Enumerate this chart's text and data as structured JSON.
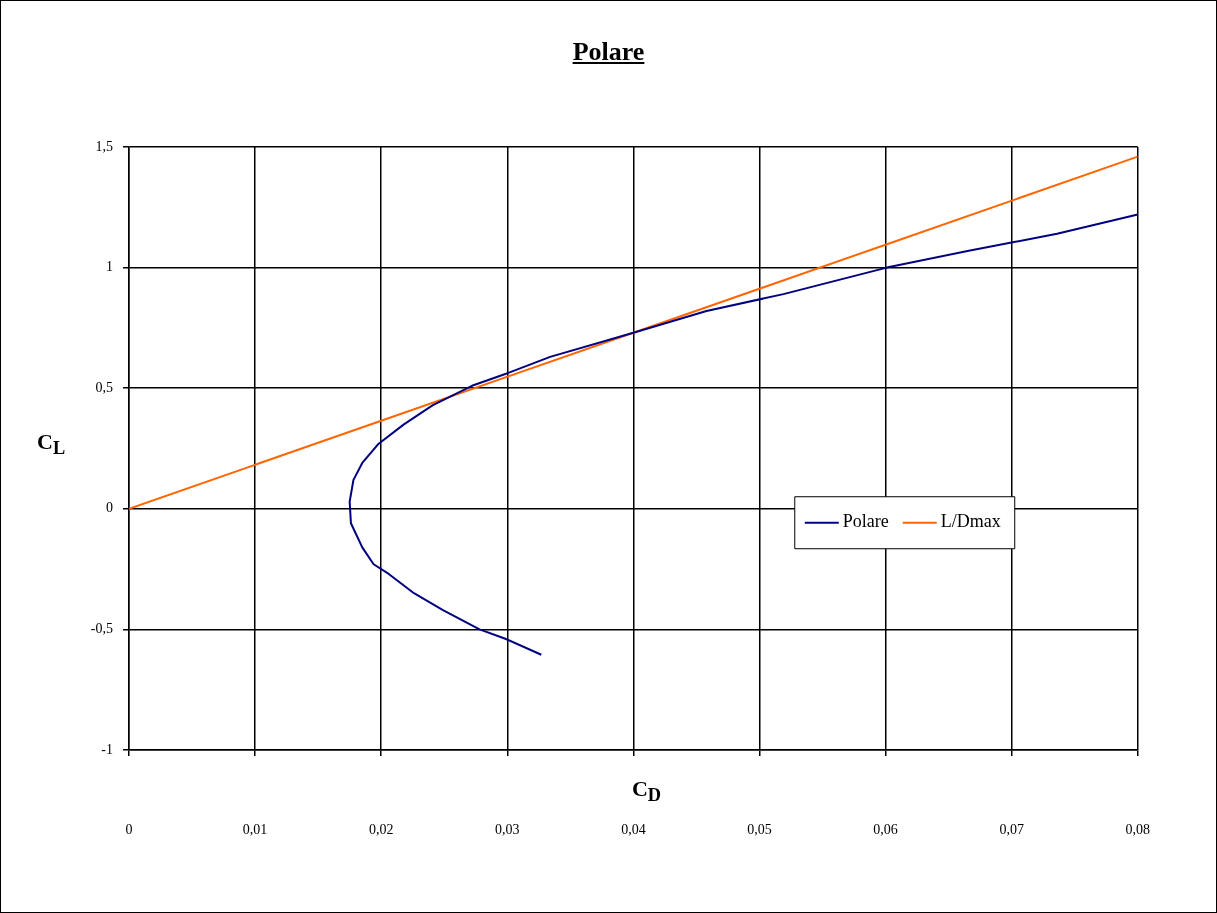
{
  "chart_data": {
    "type": "line",
    "title": "Polare",
    "xlabel": "C$_{D}$",
    "ylabel": "C$_{L}$",
    "xlim": [
      0,
      0.08
    ],
    "ylim": [
      -1,
      1.5
    ],
    "xticks": [
      0,
      {
        "value": 0.01,
        "label": "0,01"
      },
      {
        "value": 0.02,
        "label": "0,02"
      },
      {
        "value": 0.03,
        "label": "0,03"
      },
      {
        "value": 0.04,
        "label": "0,04"
      },
      {
        "value": 0.05,
        "label": "0,05"
      },
      {
        "value": 0.06,
        "label": "0,06"
      },
      {
        "value": 0.07,
        "label": "0,07"
      },
      {
        "value": 0.08,
        "label": "0,08"
      }
    ],
    "yticks": [
      -1,
      {
        "value": -0.5,
        "label": "-0,5"
      },
      0,
      {
        "value": 0.5,
        "label": "0,5"
      },
      1,
      {
        "value": 1.5,
        "label": "1,5"
      }
    ],
    "grid": true,
    "legend": "right",
    "marker": "none",
    "line_style": "solid",
    "series": [
      {
        "name": "Polare",
        "color": "#000080",
        "x": [
          0.0327,
          0.0299,
          0.0278,
          0.0249,
          0.0226,
          0.0206,
          0.0194,
          0.0185,
          0.0176,
          0.0175,
          0.0178,
          0.0185,
          0.0198,
          0.0218,
          0.0241,
          0.0272,
          0.0299,
          0.0334,
          0.04,
          0.0458,
          0.0519,
          0.0601,
          0.0666,
          0.0736,
          0.08
        ],
        "values": [
          -0.605,
          -0.54,
          -0.5,
          -0.42,
          -0.35,
          -0.27,
          -0.23,
          -0.16,
          -0.06,
          0.03,
          0.12,
          0.19,
          0.27,
          0.35,
          0.43,
          0.51,
          0.56,
          0.63,
          0.73,
          0.82,
          0.89,
          1.0,
          1.07,
          1.14,
          1.22
        ]
      },
      {
        "name": "L/Dmax",
        "color": "#ff6600",
        "x": [
          0,
          0.02,
          0.04,
          0.06,
          0.08
        ],
        "values": [
          0,
          0.365,
          0.73,
          1.095,
          1.46
        ]
      }
    ]
  }
}
